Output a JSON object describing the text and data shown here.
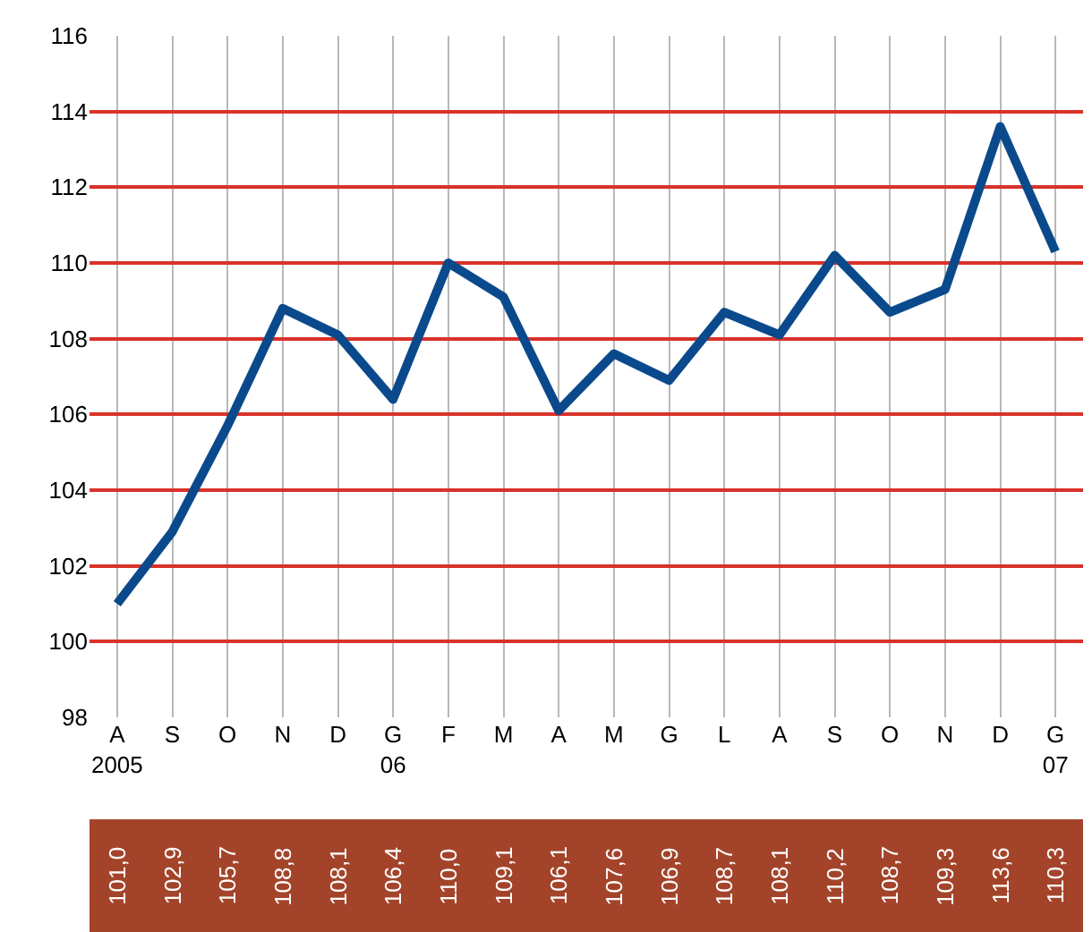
{
  "chart_data": {
    "type": "line",
    "categories": [
      "A\n2005",
      "S",
      "O",
      "N",
      "D",
      "G\n06",
      "F",
      "M",
      "A",
      "M",
      "G",
      "L",
      "A",
      "S",
      "O",
      "N",
      "D",
      "G\n07"
    ],
    "series": [
      {
        "color": "#0a4a8c",
        "values": [
          101.0,
          102.9,
          105.7,
          108.8,
          108.1,
          106.4,
          110.0,
          109.1,
          106.1,
          107.6,
          106.9,
          108.7,
          108.1,
          110.2,
          108.7,
          109.3,
          113.6,
          110.3
        ],
        "value_labels": [
          "101,0",
          "102,9",
          "105,7",
          "108,8",
          "108,1",
          "106,4",
          "110,0",
          "109,1",
          "106,1",
          "107,6",
          "106,9",
          "108,7",
          "108,1",
          "110,2",
          "108,7",
          "109,3",
          "113,6",
          "110,3"
        ]
      }
    ],
    "ylim": [
      98,
      116
    ],
    "yticks": [
      98,
      100,
      102,
      104,
      106,
      108,
      110,
      112,
      114,
      116
    ],
    "grid": true,
    "legend": false,
    "marker": "none",
    "line_style": "solid"
  }
}
